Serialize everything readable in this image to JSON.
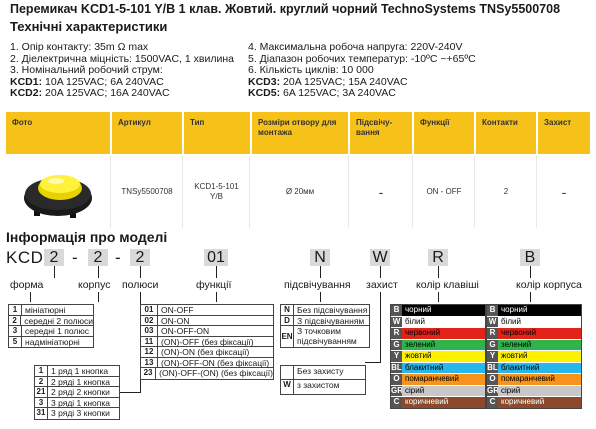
{
  "title": "Перемикач KCD1-5-101 Y/B 1 клав. Жовтий.  круглий чорний TechnoSystems TNSy5500708",
  "tech_heading": "Технічні характеристики",
  "specs_left": [
    "1. Опір контакту: 35m Ω  max",
    "2. Діелектрична міцність:  1500VAC, 1 хвилина",
    "3. Номінальний робочий струм:"
  ],
  "specs_right": [
    "4. Максимальна робоча напруга: 220V-240V",
    "5. Діапазон робочих температур: -10ºC ~+65ºC",
    "6. Кількість циклів: 10 000"
  ],
  "kcd1": {
    "k": "KCD1:",
    "v": " 10A 125VAC; 6A 240VAC"
  },
  "kcd2": {
    "k": "KCD2:",
    "v": " 20A 125VAC; 16A 240VAC"
  },
  "kcd3": {
    "k": "KCD3:",
    "v": " 20A 125VAC; 15A 240VAC"
  },
  "kcd5": {
    "k": "KCD5:",
    "v": " 6A 125VAC; 3A 240VAC"
  },
  "table": {
    "headers": [
      "Фото",
      "Артикул",
      "Тип",
      "Розміри отвору для монтажа",
      "Підсвічу-вання",
      "Функції",
      "Контакти",
      "Захист"
    ],
    "row": [
      "",
      "TNSy5500708",
      "KCD1-5-101 Y/B",
      "Ø 20мм",
      "-",
      "ON - OFF",
      "2",
      "-"
    ]
  },
  "model_heading": "Інформація про моделі",
  "code": {
    "prefix": "KCD",
    "p1": "2",
    "p2": "2",
    "p3": "2",
    "p4": "01",
    "p5": "N",
    "p6": "W",
    "p7": "R",
    "p8": "B",
    "dash": "-"
  },
  "labels": {
    "forma": "форма",
    "korpus": "корпус",
    "polusy": "полюси",
    "funktsii": "функції",
    "pidsv": "підсвічування",
    "zakhyst": "захист",
    "kolir_klav": "колір клавіші",
    "kolir_korp": "колір корпуса"
  },
  "forma_list": [
    {
      "k": "1",
      "v": "мініатюрні"
    },
    {
      "k": "2",
      "v": "середні 2 полюси"
    },
    {
      "k": "3",
      "v": "середні 1 полюс"
    },
    {
      "k": "5",
      "v": "надмініатюрні"
    }
  ],
  "polusy_list": [
    {
      "k": "1",
      "v": "1 ряд 1 кнопка"
    },
    {
      "k": "2",
      "v": "2 ряді 1 кнопка"
    },
    {
      "k": "21",
      "v": "2 ряді 2 кнопки"
    },
    {
      "k": "3",
      "v": "3 ряді 1 кнопка"
    },
    {
      "k": "31",
      "v": "3 ряді 3 кнопки"
    }
  ],
  "func_list": [
    {
      "k": "01",
      "v": "ON-OFF"
    },
    {
      "k": "02",
      "v": "ON-ON"
    },
    {
      "k": "03",
      "v": "ON-OFF-ON"
    },
    {
      "k": "11",
      "v": "(ON)-OFF (без фіксації)"
    },
    {
      "k": "12",
      "v": "(ON)-ON (без фіксації)"
    },
    {
      "k": "13",
      "v": "(ON)-OFF-ON (без фіксації)"
    },
    {
      "k": "23",
      "v": "(ON)-OFF-(ON) (без фіксації)"
    }
  ],
  "pidsv_list": [
    {
      "k": "N",
      "v": "Без підсвічування"
    },
    {
      "k": "D",
      "v": "З підсвічуванням"
    },
    {
      "k": "EN",
      "v": "З точковим підсвічуванням"
    }
  ],
  "zakh_list": [
    {
      "k": "",
      "v": "Без захисту"
    },
    {
      "k": "W",
      "v": "з захистом"
    }
  ],
  "colors_klav": [
    {
      "k": "B",
      "v": "чорний",
      "c": "#000000",
      "t": "#ffffff"
    },
    {
      "k": "W",
      "v": "білий",
      "c": "#ffffff",
      "t": "#000000"
    },
    {
      "k": "R",
      "v": "червоний",
      "c": "#e2231a",
      "t": "#000000"
    },
    {
      "k": "G",
      "v": "зелений",
      "c": "#2fb34a",
      "t": "#000000"
    },
    {
      "k": "Y",
      "v": "жовтий",
      "c": "#fff200",
      "t": "#000000"
    },
    {
      "k": "BL",
      "v": "блакитний",
      "c": "#29b6e8",
      "t": "#000000"
    },
    {
      "k": "O",
      "v": "помаранчевий",
      "c": "#f7941d",
      "t": "#000000"
    },
    {
      "k": "GR",
      "v": "сірий",
      "c": "#c8c8c8",
      "t": "#000000"
    },
    {
      "k": "C",
      "v": "коричневий",
      "c": "#8b4a2b",
      "t": "#ffffff"
    }
  ],
  "colors_korp": [
    {
      "k": "B",
      "v": "чорний",
      "c": "#000000",
      "t": "#ffffff"
    },
    {
      "k": "W",
      "v": "білий",
      "c": "#ffffff",
      "t": "#000000"
    },
    {
      "k": "R",
      "v": "червоний",
      "c": "#e2231a",
      "t": "#000000"
    },
    {
      "k": "G",
      "v": "зелений",
      "c": "#2fb34a",
      "t": "#000000"
    },
    {
      "k": "Y",
      "v": "жовтий",
      "c": "#fff200",
      "t": "#000000"
    },
    {
      "k": "BL",
      "v": "блакитний",
      "c": "#29b6e8",
      "t": "#000000"
    },
    {
      "k": "O",
      "v": "помаранчевий",
      "c": "#f7941d",
      "t": "#000000"
    },
    {
      "k": "GR",
      "v": "сірий",
      "c": "#c8c8c8",
      "t": "#000000"
    },
    {
      "k": "C",
      "v": "коричневий",
      "c": "#8b4a2b",
      "t": "#ffffff"
    }
  ],
  "accent": "#f6c21a"
}
